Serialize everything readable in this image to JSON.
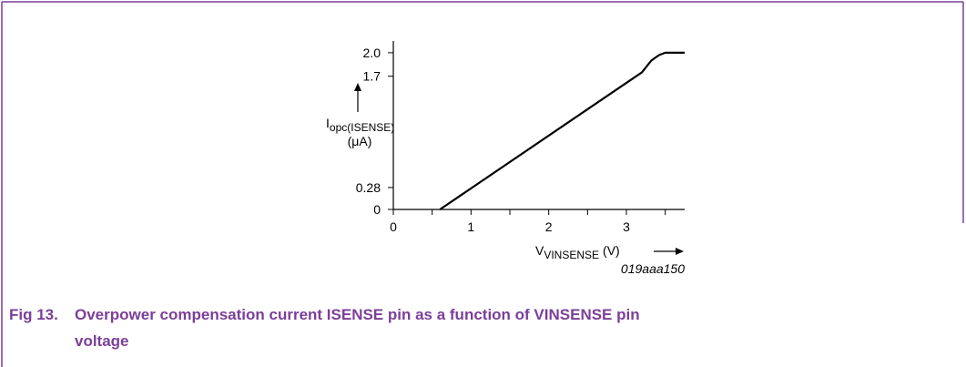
{
  "chart_data": {
    "type": "line",
    "y_label": {
      "main": "I",
      "sub": "opc(ISENSE)",
      "unit": "(μA)"
    },
    "x_label": {
      "main": "V",
      "sub": "VINSENSE",
      "unit": "(V)"
    },
    "figure_id": "019aaa150",
    "caption": {
      "number": "Fig 13.",
      "text_line1": "Overpower compensation current ISENSE pin as a function of VINSENSE pin",
      "text_line2": "voltage"
    },
    "x": [
      0.6,
      3.2,
      3.32,
      3.42,
      3.5,
      3.75
    ],
    "values": [
      0,
      1.75,
      1.9,
      1.97,
      2.0,
      2.0
    ],
    "color": "#000000",
    "xlim": [
      0,
      3.75
    ],
    "ylim": [
      0,
      2.15
    ],
    "xticks": [
      0,
      1,
      2,
      3
    ],
    "xminorticks": [
      0.5,
      1.5,
      2.5,
      3.5
    ],
    "yticks": [
      0,
      0.28,
      1.7,
      {
        "value": 2,
        "label": "2.0"
      }
    ],
    "grid": false
  }
}
